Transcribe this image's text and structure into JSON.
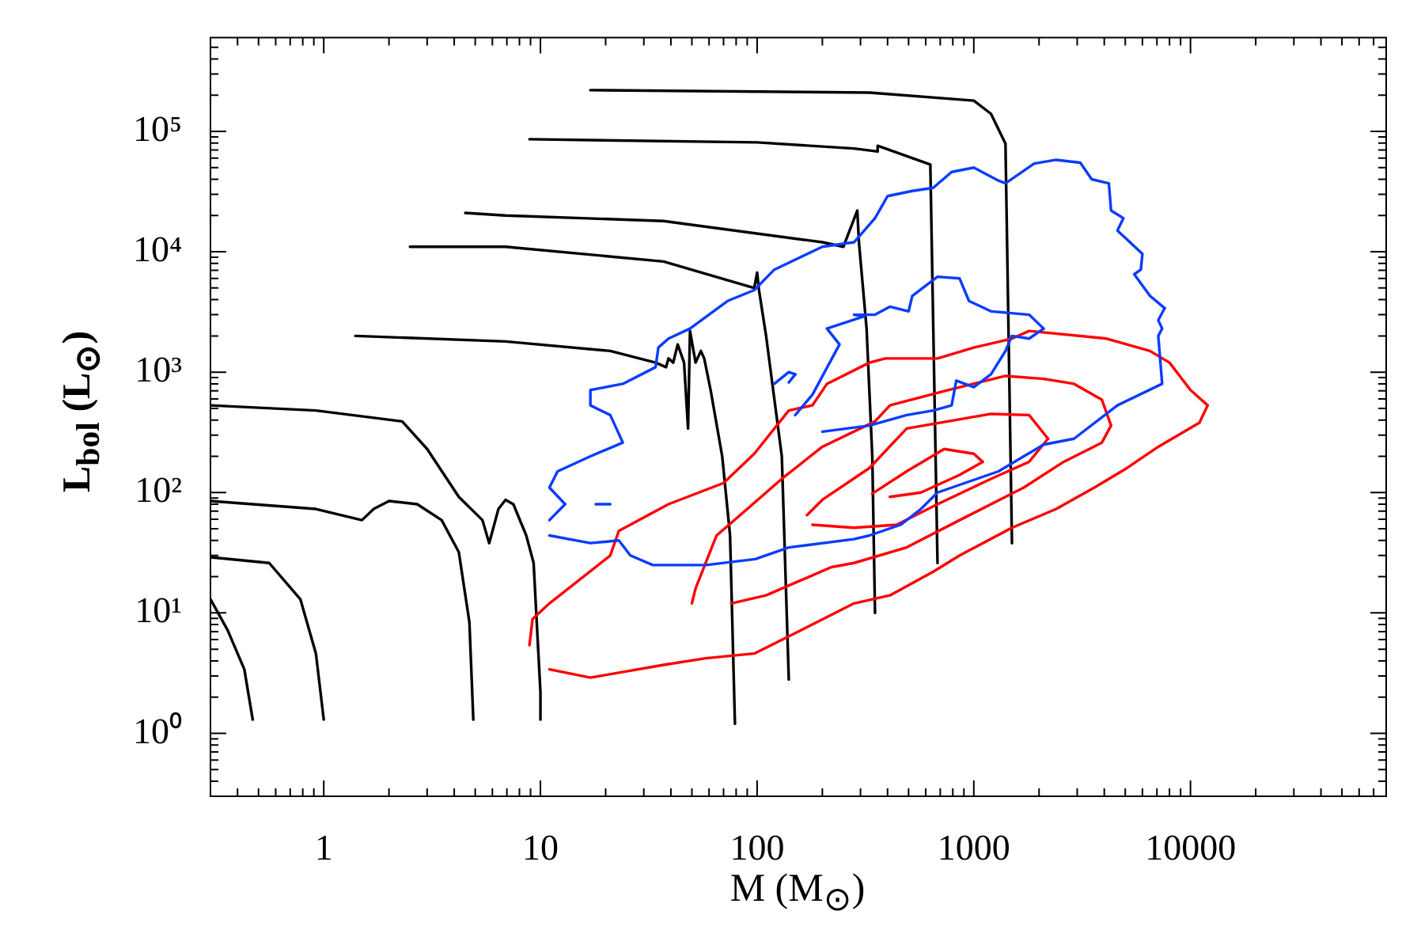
{
  "chart_data": {
    "type": "line",
    "xlabel": "M (M$_{⊙}$)",
    "ylabel": "L$_{bol}$ (L$_{⊙}$)",
    "log": "xy",
    "marker": "none",
    "line_style": "solid",
    "xlim": [
      0.3,
      80000
    ],
    "ylim": [
      0.3,
      600000
    ],
    "xticks": [
      {
        "value": 0.4,
        "label": null
      },
      {
        "value": 0.5,
        "label": null
      },
      {
        "value": 0.6,
        "label": null
      },
      {
        "value": 0.7,
        "label": null
      },
      {
        "value": 0.8,
        "label": null
      },
      {
        "value": 0.9,
        "label": null
      },
      1,
      {
        "value": 2,
        "label": null
      },
      {
        "value": 3,
        "label": null
      },
      {
        "value": 4,
        "label": null
      },
      {
        "value": 5,
        "label": null
      },
      {
        "value": 6,
        "label": null
      },
      {
        "value": 7,
        "label": null
      },
      {
        "value": 8,
        "label": null
      },
      {
        "value": 9,
        "label": null
      },
      10,
      {
        "value": 20,
        "label": null
      },
      {
        "value": 30,
        "label": null
      },
      {
        "value": 40,
        "label": null
      },
      {
        "value": 50,
        "label": null
      },
      {
        "value": 60,
        "label": null
      },
      {
        "value": 70,
        "label": null
      },
      {
        "value": 80,
        "label": null
      },
      {
        "value": 90,
        "label": null
      },
      100,
      {
        "value": 200,
        "label": null
      },
      {
        "value": 300,
        "label": null
      },
      {
        "value": 400,
        "label": null
      },
      {
        "value": 500,
        "label": null
      },
      {
        "value": 600,
        "label": null
      },
      {
        "value": 700,
        "label": null
      },
      {
        "value": 800,
        "label": null
      },
      {
        "value": 900,
        "label": null
      },
      1000,
      {
        "value": 2000,
        "label": null
      },
      {
        "value": 3000,
        "label": null
      },
      {
        "value": 4000,
        "label": null
      },
      {
        "value": 5000,
        "label": null
      },
      {
        "value": 6000,
        "label": null
      },
      {
        "value": 7000,
        "label": null
      },
      {
        "value": 8000,
        "label": null
      },
      {
        "value": 9000,
        "label": null
      },
      10000,
      {
        "value": 20000,
        "label": null
      },
      {
        "value": 30000,
        "label": null
      },
      {
        "value": 40000,
        "label": null
      },
      {
        "value": 50000,
        "label": null
      },
      {
        "value": 60000,
        "label": null
      },
      {
        "value": 70000,
        "label": null
      }
    ],
    "yticks": [
      {
        "value": 0.4,
        "label": null
      },
      {
        "value": 0.5,
        "label": null
      },
      {
        "value": 0.6,
        "label": null
      },
      {
        "value": 0.7,
        "label": null
      },
      {
        "value": 0.8,
        "label": null
      },
      {
        "value": 0.9,
        "label": null
      },
      {
        "value": 1,
        "label": "10⁰"
      },
      {
        "value": 2,
        "label": null
      },
      {
        "value": 3,
        "label": null
      },
      {
        "value": 4,
        "label": null
      },
      {
        "value": 5,
        "label": null
      },
      {
        "value": 6,
        "label": null
      },
      {
        "value": 7,
        "label": null
      },
      {
        "value": 8,
        "label": null
      },
      {
        "value": 9,
        "label": null
      },
      {
        "value": 10,
        "label": "10¹"
      },
      {
        "value": 20,
        "label": null
      },
      {
        "value": 30,
        "label": null
      },
      {
        "value": 40,
        "label": null
      },
      {
        "value": 50,
        "label": null
      },
      {
        "value": 60,
        "label": null
      },
      {
        "value": 70,
        "label": null
      },
      {
        "value": 80,
        "label": null
      },
      {
        "value": 90,
        "label": null
      },
      {
        "value": 100,
        "label": "10²"
      },
      {
        "value": 200,
        "label": null
      },
      {
        "value": 300,
        "label": null
      },
      {
        "value": 400,
        "label": null
      },
      {
        "value": 500,
        "label": null
      },
      {
        "value": 600,
        "label": null
      },
      {
        "value": 700,
        "label": null
      },
      {
        "value": 800,
        "label": null
      },
      {
        "value": 900,
        "label": null
      },
      {
        "value": 1000,
        "label": "10³"
      },
      {
        "value": 2000,
        "label": null
      },
      {
        "value": 3000,
        "label": null
      },
      {
        "value": 4000,
        "label": null
      },
      {
        "value": 5000,
        "label": null
      },
      {
        "value": 6000,
        "label": null
      },
      {
        "value": 7000,
        "label": null
      },
      {
        "value": 8000,
        "label": null
      },
      {
        "value": 9000,
        "label": null
      },
      {
        "value": 10000,
        "label": "10⁴"
      },
      {
        "value": 20000,
        "label": null
      },
      {
        "value": 30000,
        "label": null
      },
      {
        "value": 40000,
        "label": null
      },
      {
        "value": 50000,
        "label": null
      },
      {
        "value": 60000,
        "label": null
      },
      {
        "value": 70000,
        "label": null
      },
      {
        "value": 80000,
        "label": null
      },
      {
        "value": 90000,
        "label": null
      },
      {
        "value": 100000,
        "label": "10⁵"
      },
      {
        "value": 200000,
        "label": null
      },
      {
        "value": 300000,
        "label": null
      },
      {
        "value": 400000,
        "label": null
      },
      {
        "value": 500000,
        "label": null
      }
    ],
    "series": [
      {
        "type": "line",
        "color": "#0a3cff",
        "x": [
          11,
          13,
          11,
          12,
          17,
          24,
          21,
          17,
          17,
          24,
          34,
          35,
          39,
          49,
          73,
          97,
          120,
          200,
          280,
          350,
          400,
          520,
          650,
          790,
          1000,
          1300,
          1400,
          1900,
          2400,
          3100,
          3500,
          4200,
          4300,
          4900,
          4600,
          6000,
          5900,
          5500,
          6500,
          7600
        ],
        "values": [
          59,
          80,
          110,
          150,
          200,
          260,
          440,
          530,
          710,
          800,
          1100,
          1600,
          1900,
          2300,
          3900,
          4800,
          7100,
          11000,
          12000,
          19000,
          29000,
          32000,
          34000,
          46000,
          50000,
          39000,
          37000,
          54000,
          58000,
          55000,
          40000,
          37000,
          22000,
          19000,
          15000,
          9600,
          7100,
          6500,
          4300,
          3400
        ]
      },
      {
        "type": "line",
        "color": "#0a3cff",
        "x": [
          11,
          17,
          23,
          26,
          33,
          58,
          98,
          140,
          280,
          330,
          460,
          570,
          680,
          1300,
          1700,
          2100,
          2900,
          4600,
          7400,
          7100,
          7400,
          7100,
          7600
        ],
        "values": [
          44,
          38,
          40,
          30,
          25,
          25,
          28,
          35,
          41,
          44,
          54,
          73,
          100,
          150,
          200,
          250,
          280,
          530,
          800,
          2000,
          2300,
          2700,
          3400
        ]
      },
      {
        "type": "line",
        "color": "#0a3cff",
        "x": [
          150,
          180,
          240,
          210,
          310,
          280,
          350,
          410,
          500,
          520,
          680,
          860,
          950,
          1200,
          1800,
          2100
        ],
        "values": [
          440,
          650,
          1700,
          2300,
          2900,
          3000,
          3000,
          3500,
          3200,
          4300,
          6200,
          6000,
          3900,
          3200,
          3000,
          2300
        ]
      },
      {
        "type": "line",
        "color": "#0a3cff",
        "x": [
          200,
          330,
          490,
          650,
          790,
          830,
          1000,
          1200,
          1400,
          1500,
          1800,
          2100
        ],
        "values": [
          320,
          360,
          440,
          480,
          530,
          850,
          750,
          960,
          1500,
          2000,
          1900,
          2300
        ]
      },
      {
        "type": "line",
        "color": "#0a3cff",
        "x": [
          120,
          140,
          150
        ],
        "values": [
          800,
          1000,
          960
        ]
      },
      {
        "type": "line",
        "color": "#0a3cff",
        "x": [
          140,
          150
        ],
        "values": [
          820,
          960
        ]
      },
      {
        "type": "line",
        "color": "#0a3cff",
        "x": [
          18,
          21
        ],
        "values": [
          80,
          80
        ]
      },
      {
        "type": "line",
        "color": "#ff0000",
        "x": [
          8.9,
          9.2,
          11,
          21,
          23,
          39,
          70,
          97,
          140,
          180,
          210,
          330,
          390,
          680,
          1000,
          1500,
          1800,
          4100,
          6500,
          8000,
          10000,
          12000
        ],
        "values": [
          5.4,
          8.9,
          12,
          30,
          48,
          80,
          120,
          210,
          480,
          530,
          800,
          1200,
          1300,
          1300,
          1600,
          1900,
          2200,
          1900,
          1500,
          1200,
          710,
          530
        ]
      },
      {
        "type": "line",
        "color": "#ff0000",
        "x": [
          11,
          17,
          37,
          58,
          97,
          160,
          280,
          410,
          650,
          860,
          1500,
          2400,
          3600,
          5100,
          7100,
          11000,
          12000
        ],
        "values": [
          3.4,
          2.9,
          3.7,
          4.2,
          4.6,
          7.2,
          12,
          14,
          22,
          30,
          51,
          73,
          110,
          160,
          240,
          380,
          530
        ]
      },
      {
        "type": "line",
        "color": "#ff0000",
        "x": [
          50,
          52,
          65,
          76,
          130,
          200,
          350,
          410,
          760,
          1400,
          2100,
          2900,
          3900,
          4300
        ],
        "values": [
          12,
          16,
          44,
          56,
          130,
          240,
          390,
          530,
          710,
          930,
          880,
          800,
          590,
          360
        ]
      },
      {
        "type": "line",
        "color": "#ff0000",
        "x": [
          76,
          110,
          220,
          280,
          490,
          860,
          1700,
          2600,
          3900,
          4300
        ],
        "values": [
          12,
          14,
          24,
          26,
          35,
          59,
          110,
          180,
          260,
          360
        ]
      },
      {
        "type": "line",
        "color": "#ff0000",
        "x": [
          170,
          200,
          330,
          490,
          1200,
          1800,
          2200
        ],
        "values": [
          65,
          87,
          160,
          340,
          450,
          440,
          280
        ]
      },
      {
        "type": "line",
        "color": "#ff0000",
        "x": [
          180,
          280,
          440,
          680,
          1200,
          1800,
          2200
        ],
        "values": [
          54,
          51,
          54,
          80,
          130,
          180,
          280
        ]
      },
      {
        "type": "line",
        "color": "#ff0000",
        "x": [
          340,
          490,
          730,
          1000,
          1100
        ],
        "values": [
          98,
          150,
          230,
          210,
          180
        ]
      },
      {
        "type": "line",
        "color": "#ff0000",
        "x": [
          410,
          570,
          860,
          1100
        ],
        "values": [
          92,
          100,
          140,
          180
        ]
      },
      {
        "type": "line",
        "color": "#000000",
        "x": [
          0.3,
          0.36,
          0.43,
          0.47
        ],
        "values": [
          13,
          7.2,
          3.4,
          1.3
        ]
      },
      {
        "type": "line",
        "color": "#000000",
        "x": [
          0.3,
          0.56,
          0.78,
          0.92,
          1
        ],
        "values": [
          29,
          26,
          13,
          4.6,
          1.3
        ]
      },
      {
        "type": "line",
        "color": "#000000",
        "x": [
          0.3,
          0.92,
          1.5,
          1.7,
          2,
          2.7,
          3.5,
          4.2,
          4.7,
          4.9
        ],
        "values": [
          85,
          73,
          59,
          73,
          85,
          80,
          59,
          32,
          8.4,
          1.3
        ]
      },
      {
        "type": "line",
        "color": "#000000",
        "x": [
          0.3,
          0.92,
          2.3,
          3,
          4.2,
          5.4,
          5.8,
          6.4,
          6.9,
          7.5,
          8.6,
          9.3,
          10,
          10
        ],
        "values": [
          530,
          480,
          390,
          230,
          92,
          59,
          38,
          73,
          87,
          80,
          44,
          26,
          2.2,
          1.3
        ]
      },
      {
        "type": "line",
        "color": "#000000",
        "x": [
          1.4,
          6.9,
          21,
          34,
          38,
          39,
          41,
          43,
          46,
          48,
          49,
          52,
          55,
          57,
          61,
          69,
          75,
          79
        ],
        "values": [
          2000,
          1800,
          1500,
          1200,
          1100,
          1300,
          1200,
          1700,
          1200,
          340,
          2200,
          1200,
          1500,
          1300,
          710,
          200,
          44,
          1.2
        ]
      },
      {
        "type": "line",
        "color": "#000000",
        "x": [
          2.5,
          6.9,
          37,
          97,
          100,
          102,
          110,
          130,
          140
        ],
        "values": [
          11000,
          11000,
          8300,
          5000,
          6700,
          4800,
          2000,
          200,
          2.8
        ]
      },
      {
        "type": "line",
        "color": "#000000",
        "x": [
          4.5,
          6.9,
          37,
          200,
          250,
          290,
          295,
          320,
          340,
          350
        ],
        "values": [
          21000,
          20000,
          18000,
          12000,
          11000,
          22000,
          12000,
          2300,
          200,
          10
        ]
      },
      {
        "type": "line",
        "color": "#000000",
        "x": [
          8.9,
          100,
          280,
          360,
          360,
          630,
          680
        ],
        "values": [
          86000,
          81000,
          72000,
          68000,
          76000,
          53000,
          26
        ]
      },
      {
        "type": "line",
        "color": "#000000",
        "x": [
          17,
          330,
          1000,
          1200,
          1400,
          1500
        ],
        "values": [
          220000,
          210000,
          180000,
          140000,
          79000,
          38
        ]
      }
    ]
  }
}
